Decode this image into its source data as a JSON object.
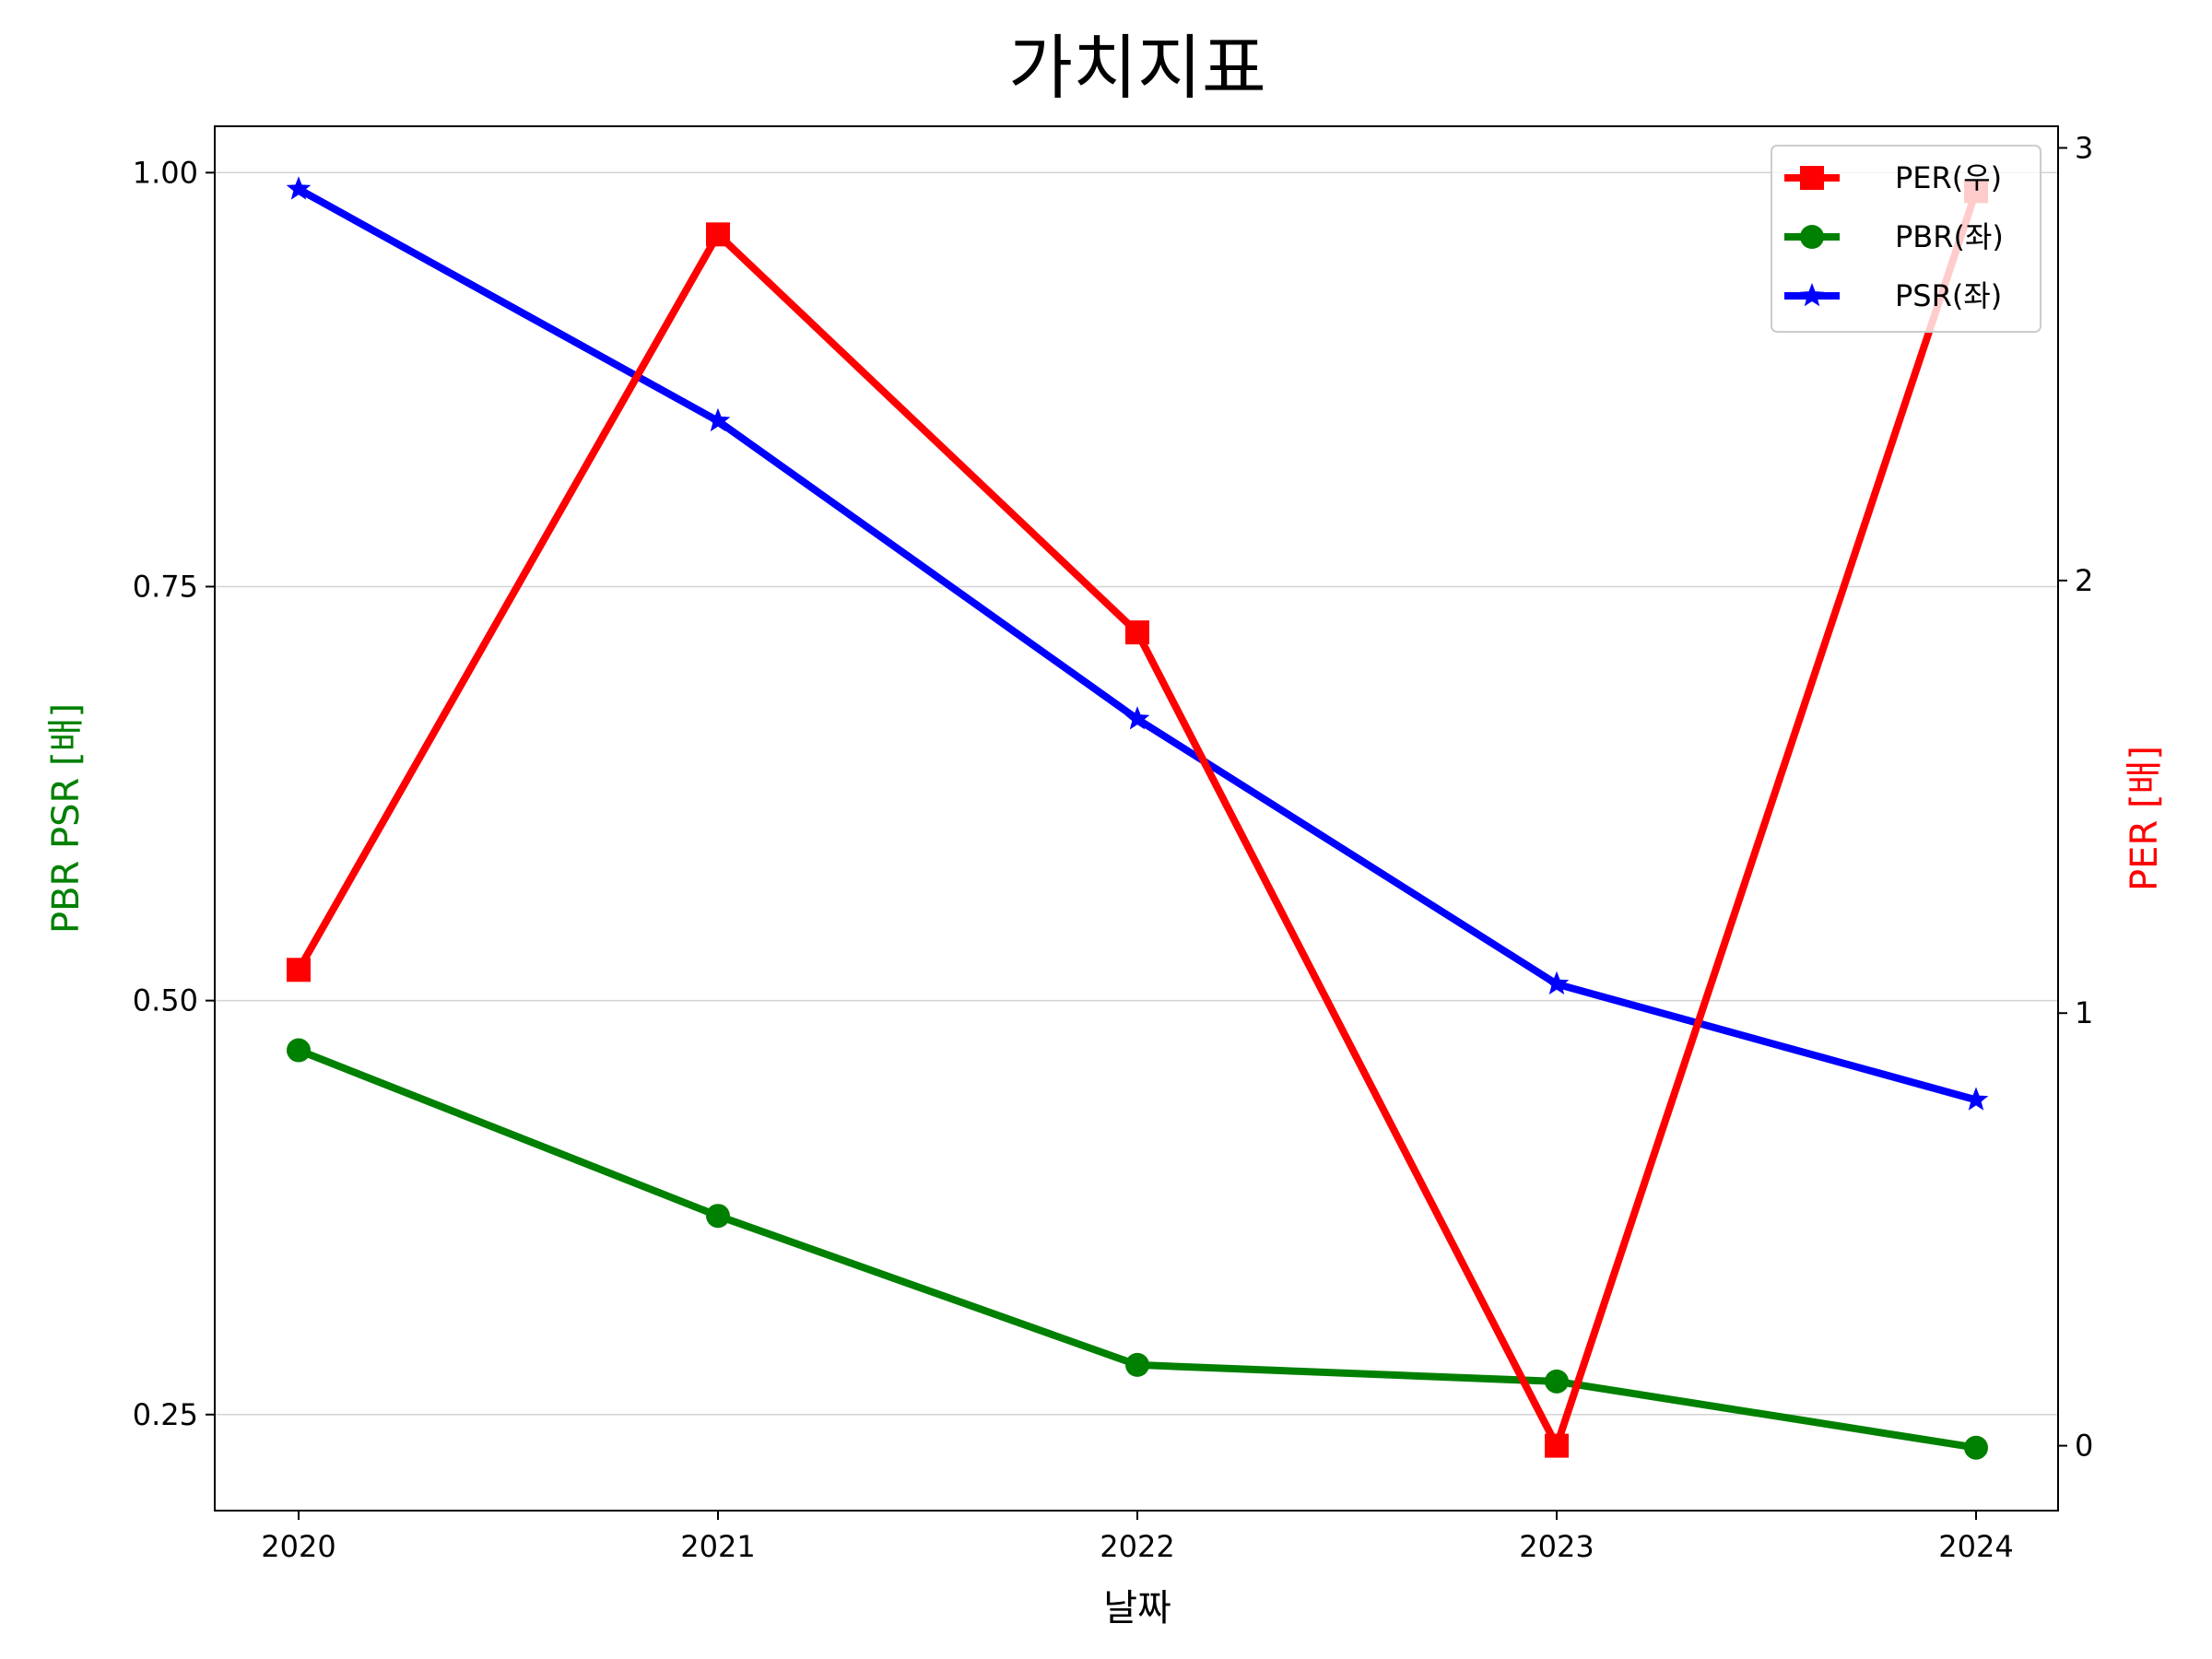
{
  "chart_data": {
    "type": "line",
    "title": "가치지표",
    "xlabel": "날짜",
    "ylabel_left": "PBR PSR [배]",
    "ylabel_right": "PER [배]",
    "categories": [
      "2020",
      "2021",
      "2022",
      "2023",
      "2024"
    ],
    "ylim_left": [
      0.192,
      1.028
    ],
    "ylim_right": [
      -0.15,
      3.05
    ],
    "yticks_left": [
      "0.25",
      "0.50",
      "0.75",
      "1.00"
    ],
    "yticks_right": [
      "0",
      "1",
      "2",
      "3"
    ],
    "grid": "horizontal",
    "legend_position": "top-right",
    "series": [
      {
        "name": "PER(우)",
        "axis": "right",
        "color": "#ff0000",
        "marker": "square",
        "values": [
          1.1,
          2.8,
          1.88,
          0.0,
          2.9
        ]
      },
      {
        "name": "PBR(좌)",
        "axis": "left",
        "color": "#008000",
        "marker": "circle",
        "values": [
          0.47,
          0.37,
          0.28,
          0.27,
          0.23
        ]
      },
      {
        "name": "PSR(좌)",
        "axis": "left",
        "color": "#0000ff",
        "marker": "star",
        "values": [
          0.99,
          0.85,
          0.67,
          0.51,
          0.44
        ]
      }
    ]
  }
}
